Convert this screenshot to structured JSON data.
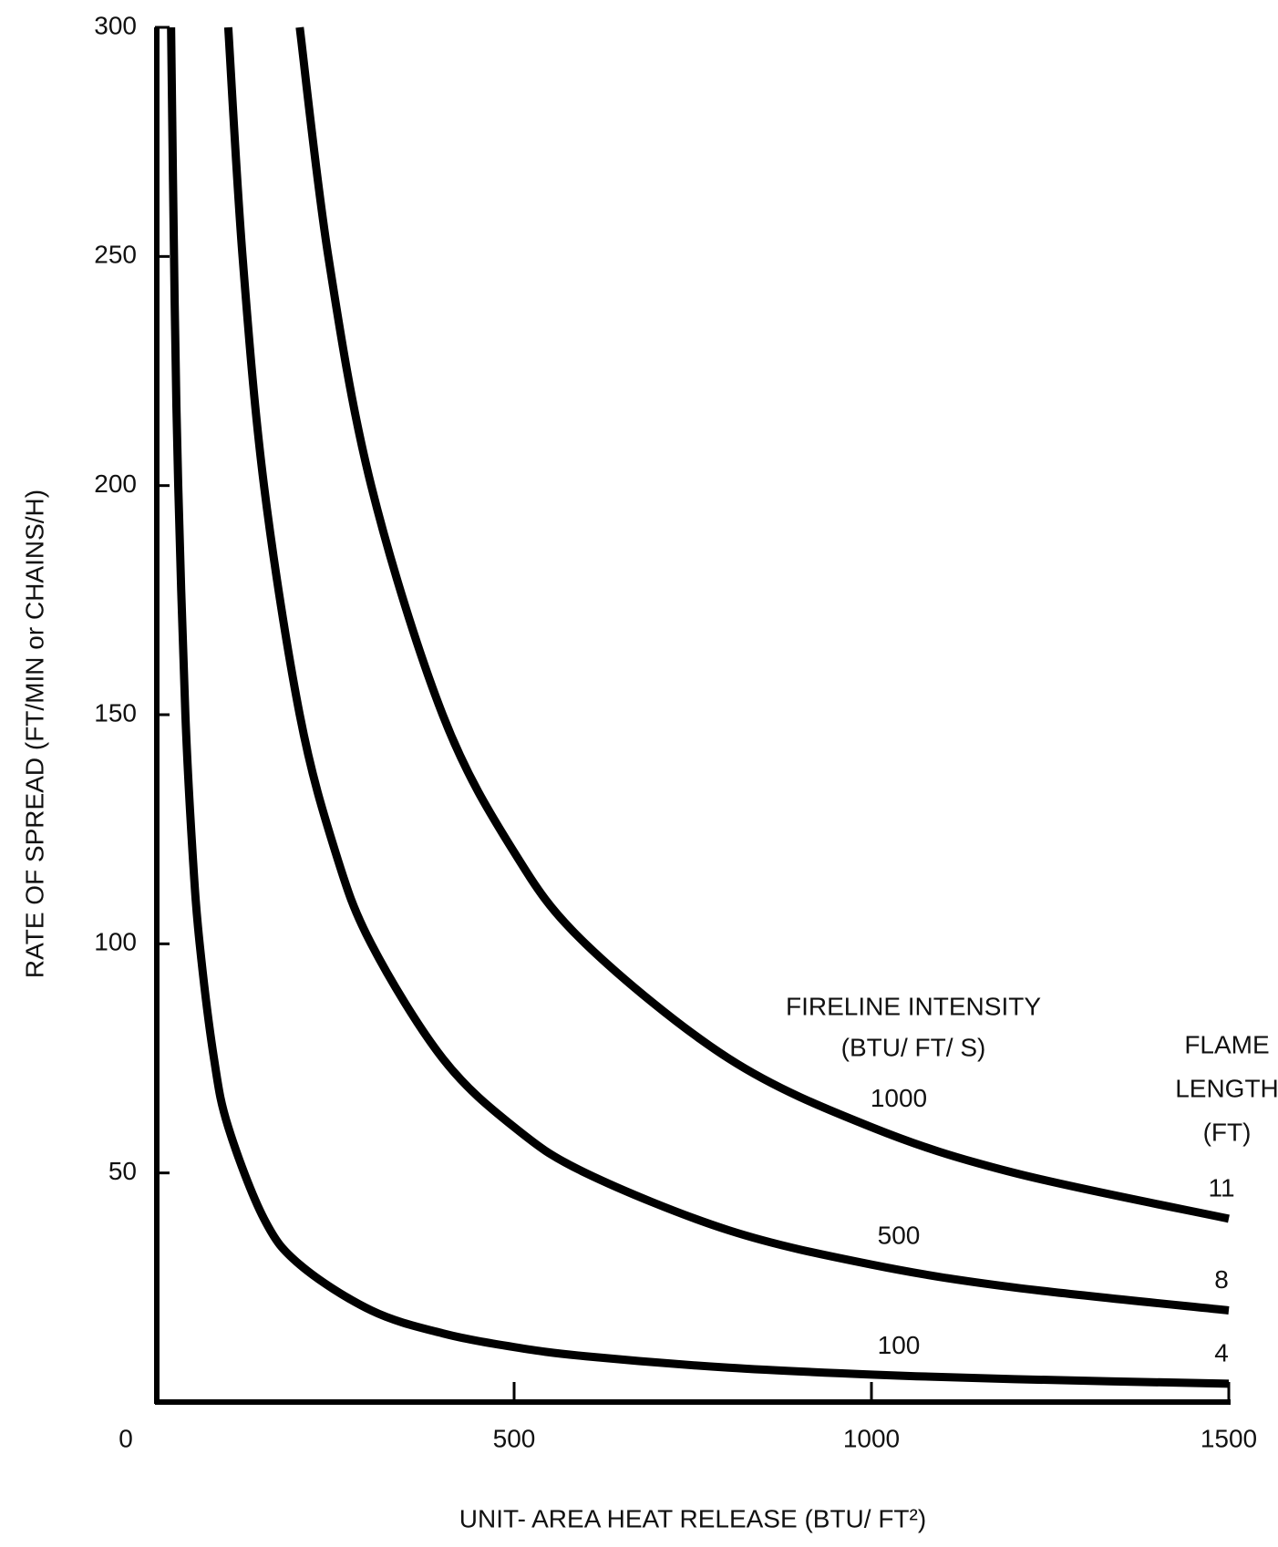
{
  "chart_data": {
    "type": "line",
    "x_label": "UNIT- AREA HEAT RELEASE (BTU/ FT²)",
    "y_label": "RATE OF SPREAD (FT/MIN or CHAINS/H)",
    "legend_title": "FIRELINE INTENSITY",
    "legend_subtitle": "(BTU/ FT/ S)",
    "flame_title": [
      "FLAME",
      "LENGTH",
      "(FT)"
    ],
    "xlim": [
      0,
      1500
    ],
    "xticks": [
      0,
      500,
      1000,
      1500
    ],
    "ylim": [
      0,
      300
    ],
    "yticks": [
      50,
      100,
      150,
      200,
      250,
      300
    ],
    "series": [
      {
        "name": "100",
        "flame_length": "4",
        "color": "#000000",
        "x": [
          20,
          25,
          30,
          40,
          50,
          60,
          80,
          100,
          150,
          200,
          300,
          400,
          500,
          600,
          800,
          1000,
          1200,
          1500
        ],
        "values": [
          300,
          240,
          200,
          150,
          120,
          100,
          75,
          60,
          40,
          30,
          20,
          15,
          12,
          10,
          7.5,
          6,
          5,
          4
        ]
      },
      {
        "name": "500",
        "flame_length": "8",
        "color": "#000000",
        "x": [
          100,
          120,
          150,
          200,
          250,
          300,
          400,
          500,
          600,
          800,
          1000,
          1200,
          1500
        ],
        "values": [
          300,
          250,
          200,
          150,
          120,
          100,
          75,
          60,
          50,
          37.5,
          30,
          25,
          20
        ]
      },
      {
        "name": "1000",
        "flame_length": "11",
        "color": "#000000",
        "x": [
          200,
          240,
          300,
          400,
          500,
          600,
          800,
          1000,
          1200,
          1500
        ],
        "values": [
          300,
          250,
          200,
          150,
          120,
          100,
          75,
          60,
          50,
          40
        ]
      }
    ]
  }
}
